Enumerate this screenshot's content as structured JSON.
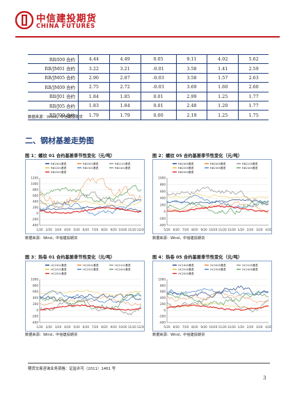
{
  "header": {
    "brand_cn": "中信建投期货",
    "brand_en": "CHINA FUTURES",
    "logo_icon": "citic-logo-icon",
    "brand_color": "#c4161c"
  },
  "table": {
    "rows": [
      [
        "RB/I09 合约",
        "4.44",
        "4.49",
        "0.05",
        "9.11",
        "4.02",
        "5.62"
      ],
      [
        "RB/JM01 合约",
        "3.22",
        "3.21",
        "-0.01",
        "3.58",
        "1.41",
        "2.59"
      ],
      [
        "RB/JM05 合约",
        "2.90",
        "2.87",
        "-0.03",
        "3.58",
        "1.57",
        "2.63"
      ],
      [
        "RB/JM09 合约",
        "2.75",
        "2.72",
        "-0.03",
        "3.69",
        "1.60",
        "2.60"
      ],
      [
        "RB/J01 合约",
        "1.84",
        "1.85",
        "0.01",
        "2.99",
        "1.25",
        "1.77"
      ],
      [
        "RB/J05 合约",
        "1.83",
        "1.84",
        "0.01",
        "2.48",
        "1.20",
        "1.77"
      ],
      [
        "RB/J09 合约",
        "1.79",
        "1.79",
        "0.00",
        "2.19",
        "1.25",
        "1.75"
      ]
    ],
    "source": "数据来源：Wind，中信建投期货"
  },
  "section": {
    "heading": "二、钢材基差走势图"
  },
  "charts": [
    {
      "title": "图 1：螺纹 01 合约基差季节性变化（元/吨）",
      "source": "数据来源：Wind，中信建投期货",
      "y_ticks": [
        "1200",
        "1000",
        "800",
        "600",
        "400",
        "200",
        "0",
        "-200",
        "-400"
      ],
      "x_ticks": [
        "1/20",
        "2/20",
        "3/20",
        "4/20",
        "5/20",
        "6/20",
        "7/20",
        "8/20",
        "9/20",
        "10/20",
        "11/20",
        "12/20"
      ],
      "legend": [
        "RB1901基差",
        "RB2001基差",
        "RB2101基差",
        "RB2201基差",
        "RB2301基差",
        "RB2401基差",
        "RB2501基差"
      ]
    },
    {
      "title": "图 2：螺纹 05 合约基差季节性变化（元/吨）",
      "source": "数据来源：Wind，中信建投期货",
      "y_ticks": [
        "1000",
        "800",
        "600",
        "400",
        "200",
        "0",
        "-200",
        "-400"
      ],
      "x_ticks": [
        "5/20",
        "6/20",
        "7/20",
        "8/20",
        "9/20",
        "10/20",
        "11/20",
        "12/20",
        "1/20",
        "2/20",
        "3/20",
        "4/20"
      ],
      "legend": [
        "RB1905基差",
        "RB2005基差",
        "RB2105基差",
        "RB2205基差",
        "RB2305基差",
        "RB2405基差",
        "RB2505基差"
      ]
    },
    {
      "title": "图 3：热卷 01 合约基差季节性变化（元/吨）",
      "source": "数据来源：Wind，中信建投期货",
      "y_ticks": [
        "1000",
        "800",
        "600",
        "400",
        "200",
        "0",
        "-200",
        "-400"
      ],
      "x_ticks": [
        "1/20",
        "2/20",
        "3/20",
        "4/20",
        "5/20",
        "6/20",
        "7/20",
        "8/20",
        "9/20",
        "10/20",
        "11/20",
        "12/20"
      ],
      "legend": [
        "HC1901基差",
        "HC2001基差",
        "HC2101基差",
        "HC2201基差",
        "HC2301基差",
        "HC2401基差",
        "HC2501基差"
      ]
    },
    {
      "title": "图 4：热卷 05 合约基差季节性变化（元/吨）",
      "source": "数据来源：Wind，中信建投期货",
      "y_ticks": [
        "1000",
        "800",
        "600",
        "400",
        "200",
        "0",
        "-200",
        "-400"
      ],
      "x_ticks": [
        "5/20",
        "6/20",
        "7/20",
        "8/20",
        "9/20",
        "10/20",
        "11/20",
        "12/20",
        "1/20",
        "2/20",
        "3/20",
        "4/20"
      ],
      "legend": [
        "HC1905基差",
        "HC2005基差",
        "HC2105基差",
        "HC2205基差",
        "HC2305基差",
        "HC2405基差",
        "HC2505基差"
      ]
    }
  ],
  "series_colors": [
    "#1f3e7a",
    "#e07b2a",
    "#8a8a8a",
    "#e6b820",
    "#3f7fc9",
    "#5aa05a",
    "#e02020"
  ],
  "footer": {
    "note": "期货交易咨询业务资格：证监许可（2011）1461 号",
    "page_number": "3"
  }
}
